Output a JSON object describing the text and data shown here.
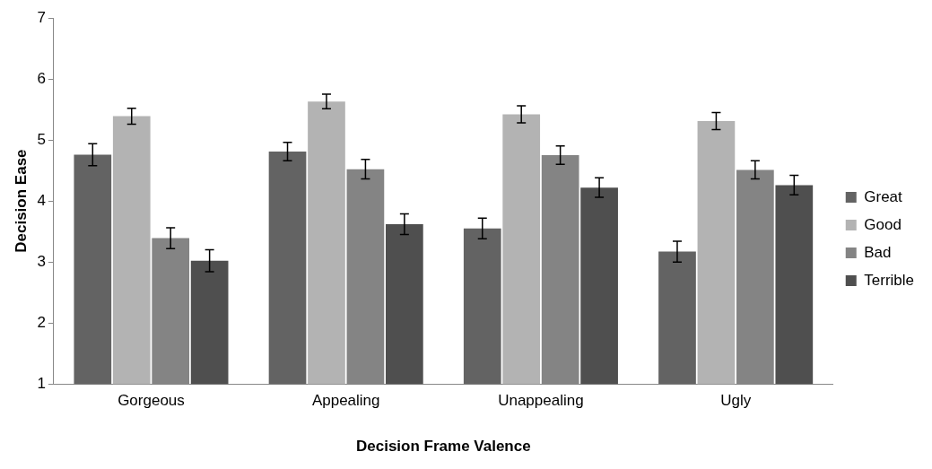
{
  "chart_data": {
    "type": "bar",
    "xlabel": "Decision Frame Valence",
    "ylabel": "Decision Ease",
    "categories": [
      "Gorgeous",
      "Appealing",
      "Unappealing",
      "Ugly"
    ],
    "series": [
      {
        "name": "Great",
        "color": "#636363",
        "values": [
          4.76,
          4.81,
          3.55,
          3.17
        ],
        "errors": [
          0.18,
          0.15,
          0.17,
          0.17
        ]
      },
      {
        "name": "Good",
        "color": "#b3b3b3",
        "values": [
          5.39,
          5.63,
          5.42,
          5.31
        ],
        "errors": [
          0.13,
          0.12,
          0.14,
          0.14
        ]
      },
      {
        "name": "Bad",
        "color": "#848484",
        "values": [
          3.39,
          4.52,
          4.75,
          4.51
        ],
        "errors": [
          0.17,
          0.16,
          0.15,
          0.15
        ]
      },
      {
        "name": "Terrible",
        "color": "#4f4f4f",
        "values": [
          3.02,
          3.62,
          4.22,
          4.26
        ],
        "errors": [
          0.18,
          0.17,
          0.16,
          0.16
        ]
      }
    ],
    "ylim": [
      1,
      7
    ],
    "yticks": [
      1,
      2,
      3,
      4,
      5,
      6,
      7
    ],
    "grid": false,
    "legend": "right"
  }
}
